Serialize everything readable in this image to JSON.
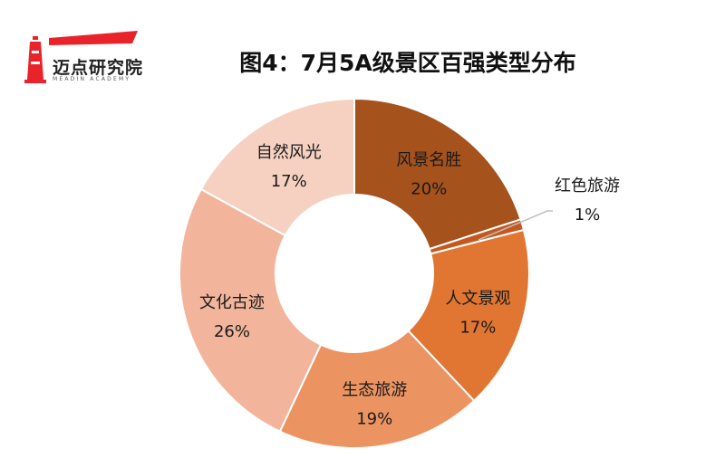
{
  "logo": {
    "name": "迈点研究院",
    "subtitle": "MEADIN ACADEMY",
    "colors": {
      "red": "#e8242a"
    }
  },
  "chart_data": {
    "type": "pie",
    "title": "图4：7月5A级景区百强类型分布",
    "hole": true,
    "slices": [
      {
        "name": "风景名胜",
        "value": 20,
        "label": "20%",
        "color": "#a5521d"
      },
      {
        "name": "红色旅游",
        "value": 1,
        "label": "1%",
        "color": "#c4581e"
      },
      {
        "name": "人文景观",
        "value": 17,
        "label": "17%",
        "color": "#e07632"
      },
      {
        "name": "生态旅游",
        "value": 19,
        "label": "19%",
        "color": "#ec9461"
      },
      {
        "name": "文化古迹",
        "value": 26,
        "label": "26%",
        "color": "#f2b59c"
      },
      {
        "name": "自然风光",
        "value": 17,
        "label": "17%",
        "color": "#f6d1c1"
      }
    ]
  }
}
